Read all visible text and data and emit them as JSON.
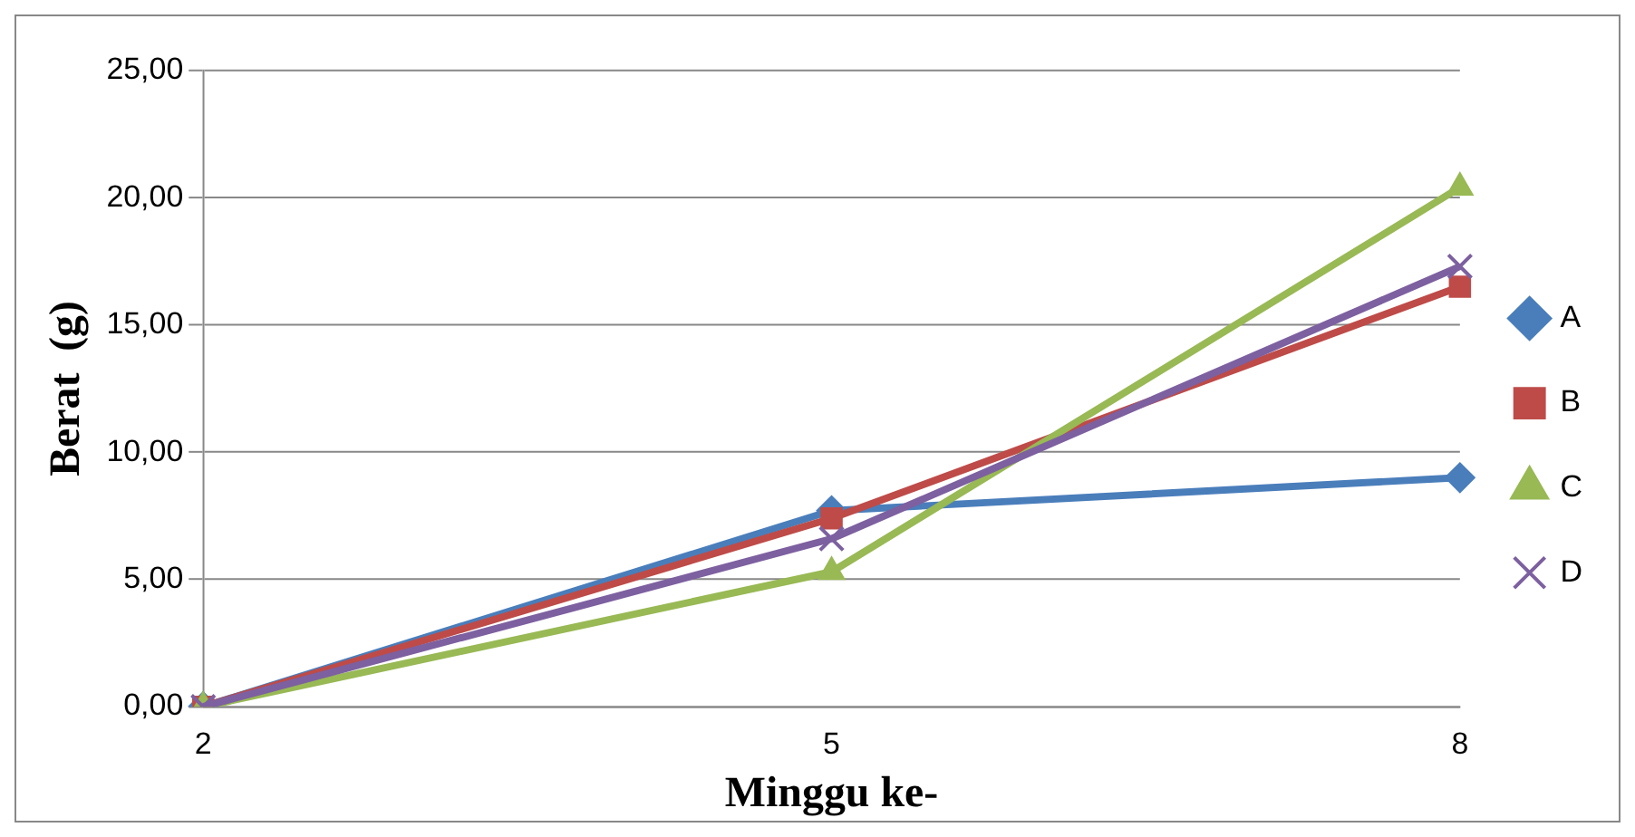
{
  "chart_data": {
    "type": "line",
    "xlabel": "Minggu ke-",
    "ylabel": "Berat  (g)",
    "categories": [
      "2",
      "5",
      "8"
    ],
    "series": [
      {
        "name": "A",
        "color": "#4a7ebb",
        "marker": "diamond",
        "values": [
          0,
          7.7,
          9.0
        ]
      },
      {
        "name": "B",
        "color": "#be4b48",
        "marker": "square",
        "values": [
          0,
          7.4,
          16.5
        ]
      },
      {
        "name": "C",
        "color": "#98b954",
        "marker": "triangle",
        "values": [
          0,
          5.3,
          20.4
        ]
      },
      {
        "name": "D",
        "color": "#7d60a0",
        "marker": "cross",
        "values": [
          0,
          6.6,
          17.3
        ]
      }
    ],
    "ylim": [
      0,
      25
    ],
    "yticks": [
      {
        "value": 0,
        "label": "0,00"
      },
      {
        "value": 5,
        "label": "5,00"
      },
      {
        "value": 10,
        "label": "10,00"
      },
      {
        "value": 15,
        "label": "15,00"
      },
      {
        "value": 20,
        "label": "20,00"
      },
      {
        "value": 25,
        "label": "25,00"
      }
    ],
    "grid": "y",
    "legend": "right"
  }
}
